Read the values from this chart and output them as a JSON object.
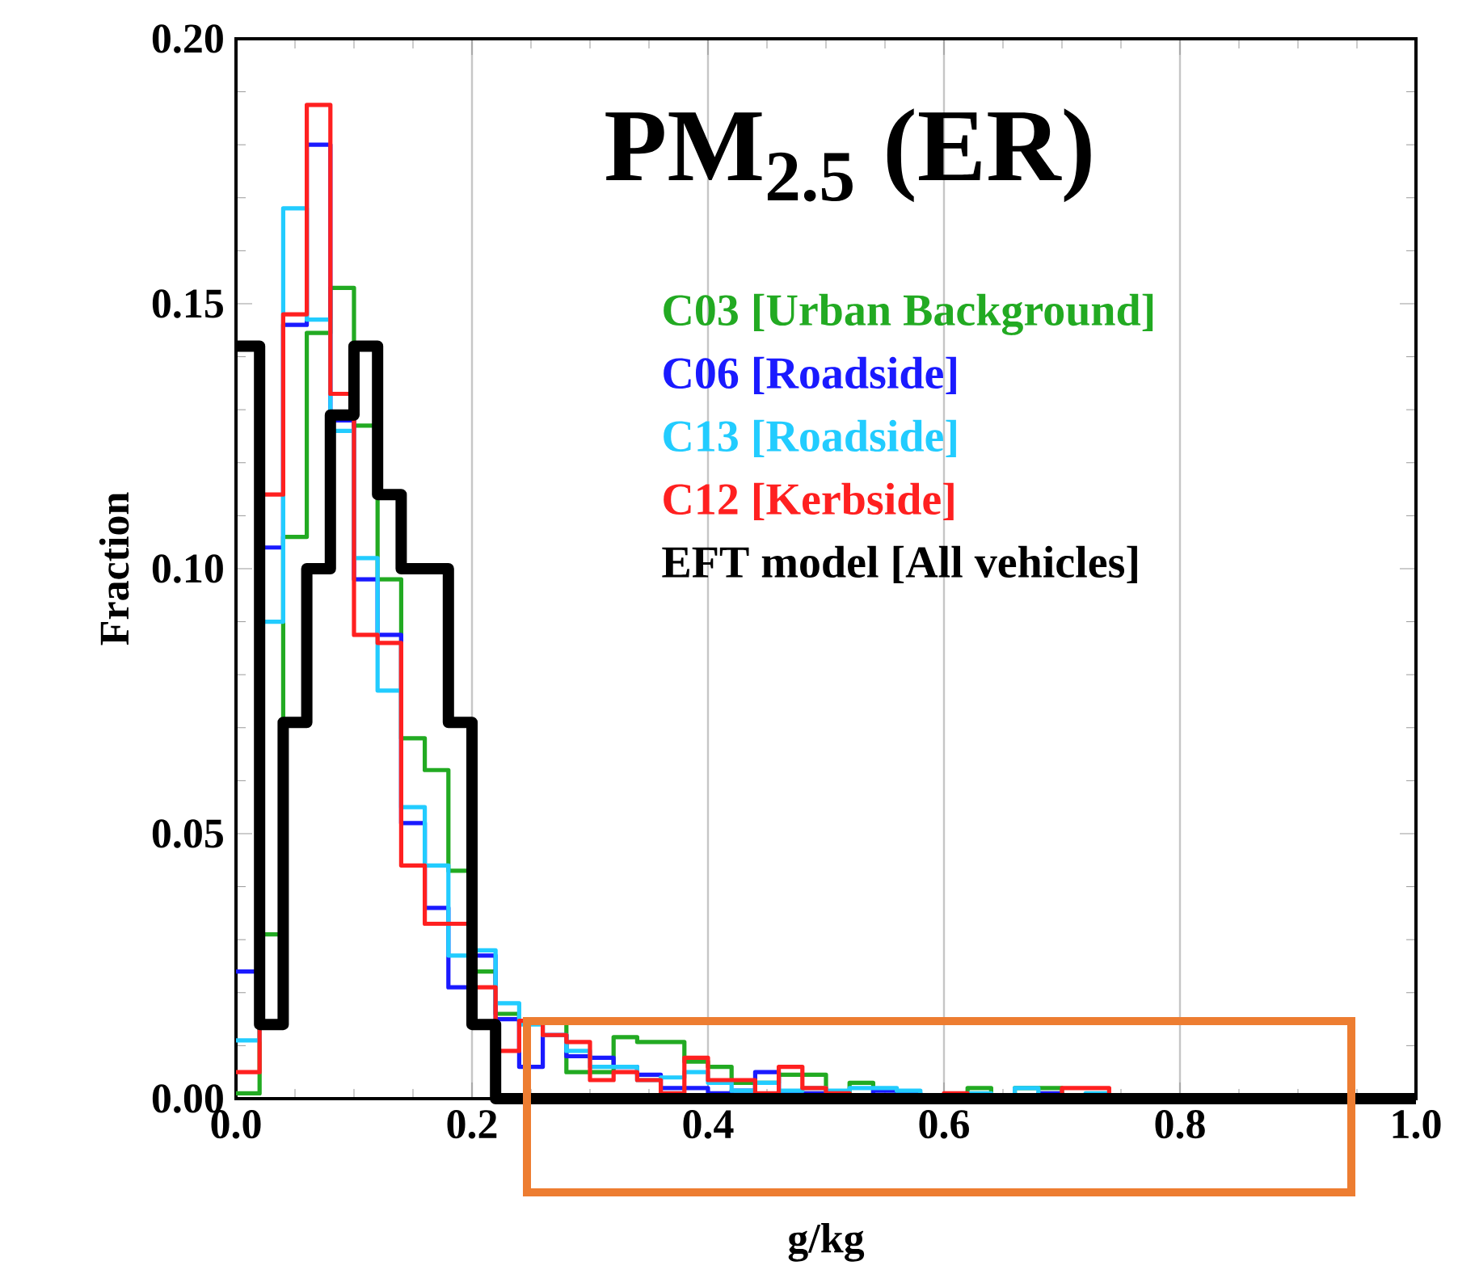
{
  "chart_data": {
    "type": "histogram",
    "title": "PM$_{2.5}$ (ER)",
    "xlabel": "g/kg",
    "ylabel": "Fraction",
    "bins": [
      0,
      0.02,
      0.04,
      0.06,
      0.08,
      0.1,
      0.12,
      0.14,
      0.16,
      0.18,
      0.2,
      0.22,
      0.24,
      0.26,
      0.28,
      0.3,
      0.32,
      0.34,
      0.36,
      0.38,
      0.4,
      0.42,
      0.44,
      0.46,
      0.48,
      0.5,
      0.52,
      0.54,
      0.56,
      0.58,
      0.6,
      0.62,
      0.64,
      0.66,
      0.68,
      0.7,
      0.72,
      0.74,
      0.76,
      0.78,
      0.8,
      0.82,
      0.84,
      0.86,
      0.88,
      0.9,
      0.92,
      0.94,
      0.96,
      0.98,
      1.0
    ],
    "series": [
      {
        "name": "C03 [Urban Background]",
        "color": "#22aa22",
        "values": [
          0.001,
          0.031,
          0.106,
          0.1445,
          0.153,
          0.127,
          0.098,
          0.068,
          0.062,
          0.043,
          0.024,
          0.016,
          0.0147,
          0.0147,
          0.005,
          0.005,
          0.0116,
          0.0107,
          0.0107,
          0.007,
          0.006,
          0.003,
          0.003,
          0.0045,
          0.0045,
          0.001,
          0.003,
          0.0005,
          0.0005,
          0.0005,
          0.0005,
          0.002,
          0.0005,
          0.002,
          0.002,
          0,
          0,
          0,
          0,
          0.0005,
          0,
          0,
          0,
          0,
          0,
          0,
          0.0005,
          0,
          0,
          0
        ]
      },
      {
        "name": "C06 [Roadside]",
        "color": "#1a1aff",
        "values": [
          0.024,
          0.104,
          0.146,
          0.18,
          0.128,
          0.098,
          0.0875,
          0.052,
          0.036,
          0.021,
          0.027,
          0.015,
          0.006,
          0.012,
          0.008,
          0.0077,
          0.006,
          0.0045,
          0.002,
          0.002,
          0.001,
          0.0015,
          0.005,
          0.001,
          0.001,
          0.0005,
          0.0005,
          0.0015,
          0.001,
          0,
          0,
          0,
          0,
          0,
          0.001,
          0,
          0,
          0,
          0,
          0,
          0,
          0.0005,
          0,
          0,
          0,
          0,
          0,
          0,
          0,
          0
        ]
      },
      {
        "name": "C13 [Roadside]",
        "color": "#22ccff",
        "values": [
          0.011,
          0.09,
          0.168,
          0.147,
          0.126,
          0.102,
          0.077,
          0.055,
          0.044,
          0.027,
          0.028,
          0.018,
          0.014,
          0.012,
          0.009,
          0.006,
          0.006,
          0.0035,
          0.004,
          0.005,
          0.003,
          0.0015,
          0.003,
          0.0015,
          0.002,
          0.0015,
          0.002,
          0.002,
          0.0015,
          0,
          0.0005,
          0.001,
          0,
          0.002,
          0,
          0.0005,
          0.001,
          0,
          0,
          0,
          0,
          0,
          0,
          0,
          0.0005,
          0,
          0,
          0,
          0,
          0
        ]
      },
      {
        "name": "C12 [Kerbside]",
        "color": "#ff2020",
        "values": [
          0.005,
          0.114,
          0.148,
          0.1875,
          0.133,
          0.0875,
          0.086,
          0.044,
          0.033,
          0.033,
          0.021,
          0.009,
          0.0147,
          0.012,
          0.0107,
          0.0035,
          0.005,
          0.0035,
          0.001,
          0.0077,
          0.0035,
          0.0035,
          0.001,
          0.006,
          0.002,
          0.001,
          0.0005,
          0,
          0,
          0,
          0.001,
          0.0005,
          0.0005,
          0.0005,
          0,
          0.002,
          0.002,
          0,
          0,
          0,
          0,
          0,
          0.0005,
          0.0005,
          0,
          0,
          0,
          0,
          0,
          0
        ]
      },
      {
        "name": "EFT model [All vehicles]",
        "color": "#000000",
        "values": [
          0.142,
          0.014,
          0.071,
          0.1,
          0.129,
          0.142,
          0.114,
          0.1,
          0.1,
          0.071,
          0.014,
          0,
          0,
          0,
          0,
          0,
          0,
          0,
          0,
          0,
          0,
          0,
          0,
          0,
          0,
          0,
          0,
          0,
          0,
          0,
          0,
          0,
          0,
          0,
          0,
          0,
          0,
          0,
          0,
          0,
          0,
          0,
          0,
          0,
          0,
          0,
          0,
          0,
          0,
          0
        ]
      }
    ],
    "xlim": [
      0,
      1.0
    ],
    "ylim": [
      0,
      0.2
    ],
    "xticks": [
      {
        "value": 0,
        "label": "0.0"
      },
      {
        "value": 0.2,
        "label": "0.2"
      },
      {
        "value": 0.4,
        "label": "0.4"
      },
      {
        "value": 0.6,
        "label": "0.6"
      },
      {
        "value": 0.8,
        "label": "0.8"
      },
      {
        "value": 1.0,
        "label": "1.0"
      }
    ],
    "yticks": [
      {
        "value": 0,
        "label": "0.00"
      },
      {
        "value": 0.05,
        "label": "0.05"
      },
      {
        "value": 0.1,
        "label": "0.10"
      },
      {
        "value": 0.15,
        "label": "0.15"
      },
      {
        "value": 0.2,
        "label": "0.20"
      }
    ],
    "grid": "x",
    "legend": "top right"
  }
}
